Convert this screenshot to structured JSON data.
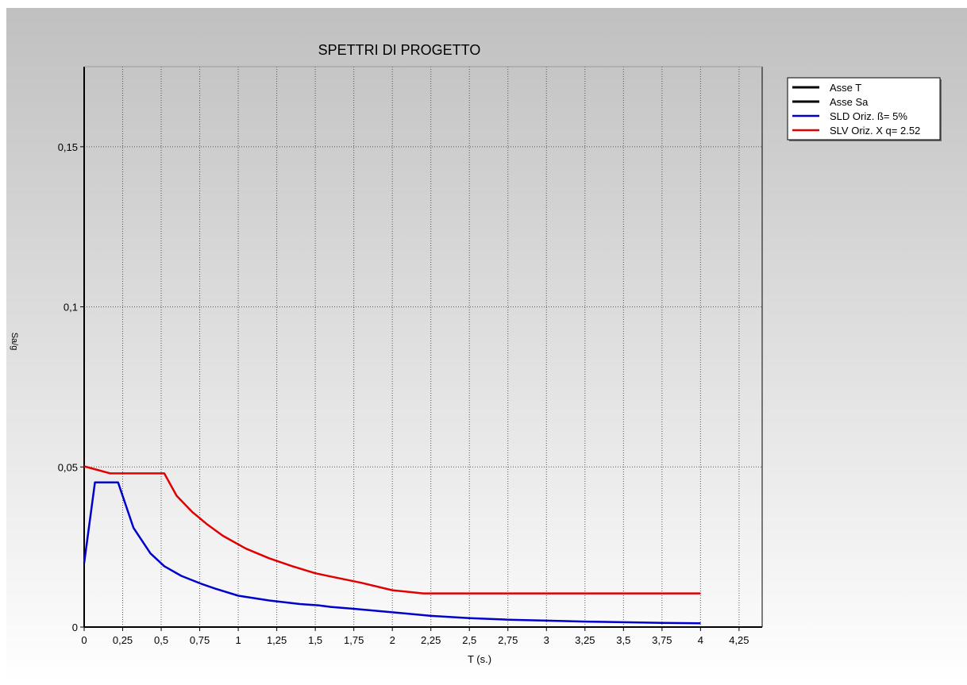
{
  "chart_data": {
    "type": "line",
    "title": "SPETTRI DI PROGETTO",
    "xlabel": "T (s.)",
    "ylabel": "Sa/g",
    "xlim": [
      0,
      4.4
    ],
    "ylim": [
      0,
      0.175
    ],
    "x_ticks": [
      "0",
      "0,25",
      "0,5",
      "0,75",
      "1",
      "1,25",
      "1,5",
      "1,75",
      "2",
      "2,25",
      "2,5",
      "2,75",
      "3",
      "3,25",
      "3,5",
      "3,75",
      "4",
      "4,25"
    ],
    "x_tick_values": [
      0,
      0.25,
      0.5,
      0.75,
      1,
      1.25,
      1.5,
      1.75,
      2,
      2.25,
      2.5,
      2.75,
      3,
      3.25,
      3.5,
      3.75,
      4,
      4.25
    ],
    "y_ticks": [
      "0",
      "0,05",
      "0,1",
      "0,15"
    ],
    "y_tick_values": [
      0,
      0.05,
      0.1,
      0.15
    ],
    "grid": true,
    "legend_position": "top-right",
    "series": [
      {
        "name": "Asse T",
        "color": "#000000",
        "x": [],
        "y": []
      },
      {
        "name": "Asse Sa",
        "color": "#000000",
        "x": [],
        "y": []
      },
      {
        "name": "SLD Oriz. ß= 5%",
        "color": "#0000cc",
        "x": [
          0,
          0.07,
          0.22,
          0.32,
          0.43,
          0.52,
          0.63,
          0.76,
          0.85,
          1.0,
          1.2,
          1.4,
          1.52,
          1.6,
          1.75,
          2.0,
          2.25,
          2.5,
          2.75,
          3.0,
          3.25,
          3.5,
          3.75,
          4.0
        ],
        "y": [
          0.02,
          0.0452,
          0.0452,
          0.031,
          0.023,
          0.019,
          0.016,
          0.0135,
          0.012,
          0.0098,
          0.0083,
          0.0072,
          0.0068,
          0.0063,
          0.0057,
          0.0046,
          0.0035,
          0.0028,
          0.0023,
          0.002,
          0.0017,
          0.0015,
          0.0013,
          0.0012
        ]
      },
      {
        "name": "SLV Oriz. X q= 2.52",
        "color": "#e00000",
        "x": [
          0,
          0.17,
          0.52,
          0.6,
          0.7,
          0.8,
          0.9,
          1.05,
          1.2,
          1.35,
          1.5,
          1.6,
          1.7,
          1.8,
          2.0,
          2.2,
          2.5,
          3.0,
          3.5,
          4.0
        ],
        "y": [
          0.0502,
          0.048,
          0.048,
          0.041,
          0.036,
          0.032,
          0.0285,
          0.0245,
          0.0215,
          0.019,
          0.0168,
          0.0158,
          0.0148,
          0.0138,
          0.0115,
          0.0105,
          0.0105,
          0.0105,
          0.0105,
          0.0105
        ]
      }
    ]
  }
}
